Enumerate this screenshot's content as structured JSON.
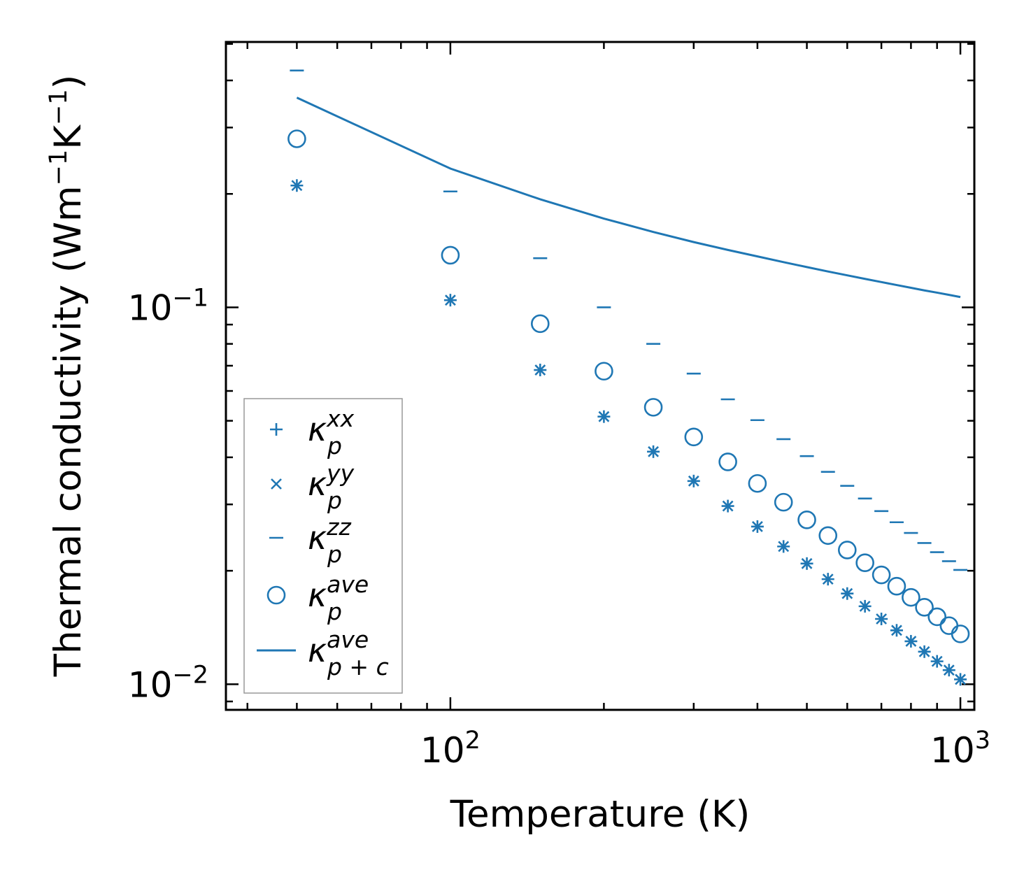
{
  "chart_data": {
    "type": "scatter",
    "xscale": "log",
    "yscale": "log",
    "xlabel": "Temperature (K)",
    "ylabel": {
      "prefix": "Thermal conductivity (Wm",
      "exp1": "−1",
      "mid": "K",
      "exp2": "−1",
      "suffix": ")"
    },
    "xlim": [
      36.3,
      1065
    ],
    "ylim": [
      0.00855,
      0.506
    ],
    "x_ticks": [
      {
        "value": 100,
        "base": "10",
        "exp": "2"
      },
      {
        "value": 1000,
        "base": "10",
        "exp": "3"
      }
    ],
    "y_ticks": [
      {
        "value": 0.01,
        "base": "10",
        "exp": "−2"
      },
      {
        "value": 0.1,
        "base": "10",
        "exp": "−1"
      }
    ],
    "color": "#1f77b4",
    "x": [
      50,
      100,
      150,
      200,
      250,
      300,
      350,
      400,
      450,
      500,
      550,
      600,
      650,
      700,
      750,
      800,
      850,
      900,
      950,
      1000
    ],
    "series": [
      {
        "name": "kappa_p_xx",
        "marker": "plus",
        "legend": {
          "base": "κ",
          "sup": "xx",
          "sub": "p"
        },
        "values": [
          0.2105,
          0.1045,
          0.0682,
          0.0513,
          0.0414,
          0.0346,
          0.0297,
          0.0262,
          0.0232,
          0.0209,
          0.019,
          0.0174,
          0.0161,
          0.0149,
          0.0139,
          0.013,
          0.0122,
          0.0115,
          0.0109,
          0.0103
        ]
      },
      {
        "name": "kappa_p_yy",
        "marker": "x",
        "legend": {
          "base": "κ",
          "sup": "yy",
          "sub": "p"
        },
        "values": [
          0.2105,
          0.1045,
          0.0682,
          0.0513,
          0.0414,
          0.0346,
          0.0297,
          0.0262,
          0.0232,
          0.0209,
          0.019,
          0.0174,
          0.0161,
          0.0149,
          0.0139,
          0.013,
          0.0122,
          0.0115,
          0.0109,
          0.0103
        ]
      },
      {
        "name": "kappa_p_zz",
        "marker": "hline",
        "legend": {
          "base": "κ",
          "sup": "zz",
          "sub": "p"
        },
        "values": [
          0.425,
          0.203,
          0.135,
          0.1,
          0.08,
          0.0667,
          0.057,
          0.0502,
          0.0447,
          0.0403,
          0.0366,
          0.0336,
          0.0311,
          0.0288,
          0.0269,
          0.0252,
          0.0237,
          0.0224,
          0.0212,
          0.0201
        ]
      },
      {
        "name": "kappa_p_ave",
        "marker": "circle",
        "legend": {
          "base": "κ",
          "sup": "ave",
          "sub": "p"
        },
        "values": [
          0.28,
          0.1375,
          0.0905,
          0.0677,
          0.0543,
          0.0453,
          0.0389,
          0.0341,
          0.0304,
          0.0273,
          0.0248,
          0.0227,
          0.021,
          0.0195,
          0.0182,
          0.017,
          0.016,
          0.0151,
          0.0143,
          0.0136
        ]
      },
      {
        "name": "kappa_p+c_ave",
        "marker": "line",
        "legend": {
          "base": "κ",
          "sup": "ave",
          "sub": "p + c"
        },
        "x": [
          50,
          100,
          150,
          200,
          250,
          300,
          350,
          400,
          450,
          500,
          550,
          600,
          650,
          700,
          750,
          800,
          850,
          900,
          950,
          1000
        ],
        "values": [
          0.36,
          0.2335,
          0.1935,
          0.172,
          0.1585,
          0.149,
          0.142,
          0.1365,
          0.1318,
          0.1279,
          0.1245,
          0.1216,
          0.119,
          0.1167,
          0.1146,
          0.1127,
          0.1109,
          0.1094,
          0.1079,
          0.1065
        ]
      }
    ],
    "legend_position": "lower-left"
  }
}
